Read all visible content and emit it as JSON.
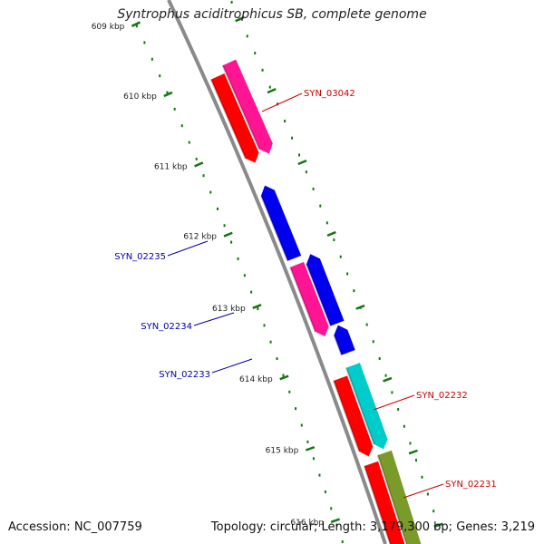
{
  "title": "Syntrophus aciditrophicus SB, complete genome",
  "footer": {
    "accession": "Accession: NC_007759",
    "topology": "Topology: circular",
    "length": "Length: 3,179,300 bp",
    "genes": "Genes: 3,219"
  },
  "colors": {
    "backbone": "#8a8a8a",
    "tick": "#117711",
    "label_red": "#cc0000",
    "label_blue": "#0000aa"
  },
  "kbp_ticks": [
    {
      "label": "609 kbp"
    },
    {
      "label": "610 kbp"
    },
    {
      "label": "611 kbp"
    },
    {
      "label": "612 kbp"
    },
    {
      "label": "613 kbp"
    },
    {
      "label": "614 kbp"
    },
    {
      "label": "615 kbp"
    },
    {
      "label": "616 kbp"
    }
  ],
  "gene_labels": [
    {
      "text": "SYN_03042",
      "color": "#cc0000"
    },
    {
      "text": "SYN_02235",
      "color": "#0000aa"
    },
    {
      "text": "SYN_02234",
      "color": "#0000aa"
    },
    {
      "text": "SYN_02233",
      "color": "#0000aa"
    },
    {
      "text": "SYN_02232",
      "color": "#cc0000"
    },
    {
      "text": "SYN_02231",
      "color": "#cc0000"
    }
  ],
  "genes": [
    {
      "color": "#ff0000",
      "strand": "down"
    },
    {
      "color": "#ff1493",
      "strand": "down"
    },
    {
      "color": "#ff0000",
      "strand": "down"
    },
    {
      "color": "#ff1493",
      "strand": "down"
    },
    {
      "color": "#0000ee",
      "strand": "up"
    },
    {
      "color": "#ff1493",
      "strand": "down"
    },
    {
      "color": "#0000ee",
      "strand": "up"
    },
    {
      "color": "#0000ee",
      "strand": "up"
    },
    {
      "color": "#ff0000",
      "strand": "down"
    },
    {
      "color": "#00cccc",
      "strand": "down"
    },
    {
      "color": "#ff0000",
      "strand": "down"
    },
    {
      "color": "#7a9a2a",
      "strand": "down"
    }
  ]
}
